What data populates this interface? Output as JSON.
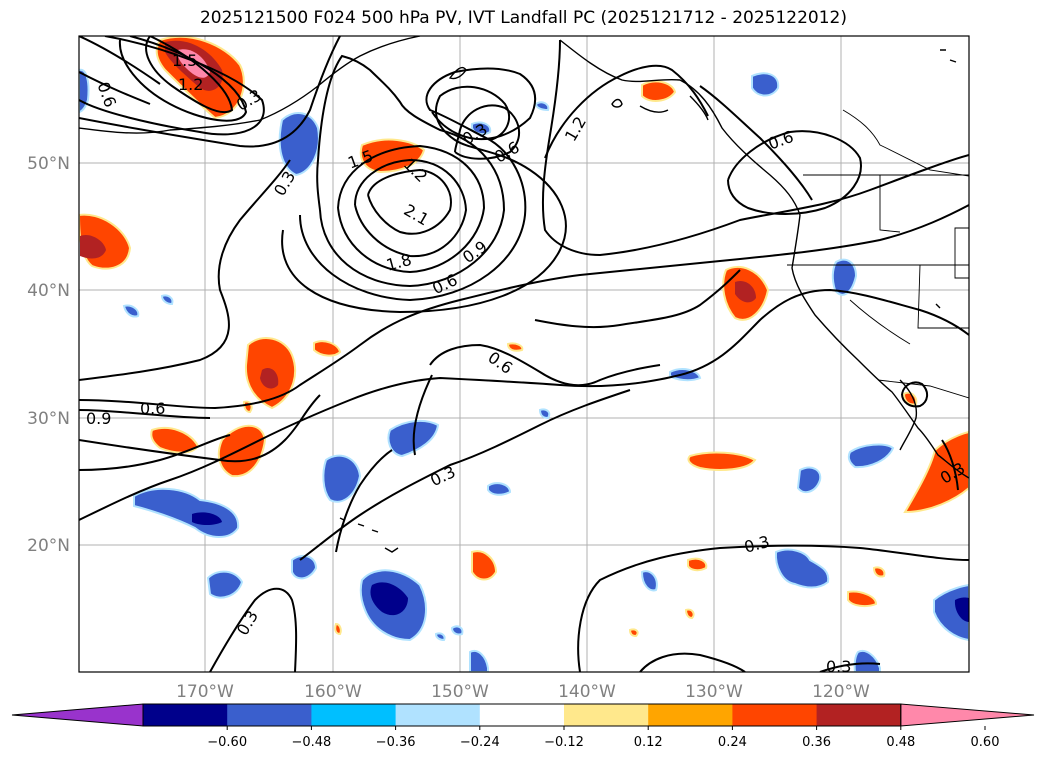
{
  "title": "2025121500 F024 500 hPa PV, IVT Landfall PC (2025121712 - 2025122012)",
  "map": {
    "lon_ticks": [
      "170°W",
      "160°W",
      "150°W",
      "140°W",
      "130°W",
      "120°W"
    ],
    "lat_ticks": [
      "50°N",
      "40°N",
      "30°N",
      "20°N"
    ],
    "grid": true
  },
  "contour_labels": [
    "1.5",
    "1.2",
    "0.6",
    "0.3",
    "0.3",
    "1.5",
    "1.2",
    "2.1",
    "1.8",
    "0.9",
    "0.6",
    "0.3",
    "0.6",
    "1.2",
    "0.6",
    "0.6",
    "0.9",
    "0.6",
    "0.3",
    "0.3",
    "0.3",
    "0.3",
    "0.3"
  ],
  "colorbar": {
    "ticks": [
      "−0.60",
      "−0.48",
      "−0.36",
      "−0.24",
      "−0.12",
      "0.12",
      "0.24",
      "0.36",
      "0.48",
      "0.60"
    ],
    "colors": [
      "#9933cc",
      "#00008b",
      "#3a5fcd",
      "#00bfff",
      "#b0e2ff",
      "#ffffff",
      "#ffe88c",
      "#ffa500",
      "#ff4500",
      "#b22222",
      "#ff88aa"
    ],
    "extend": "both"
  }
}
